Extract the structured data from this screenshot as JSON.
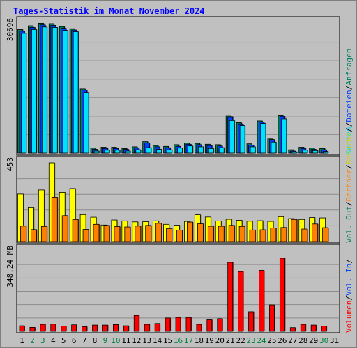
{
  "chart_data": {
    "type": "bar",
    "title": "Tages-Statistik im Monat November 2024",
    "categories": [
      "1",
      "2",
      "3",
      "4",
      "5",
      "6",
      "7",
      "8",
      "9",
      "10",
      "11",
      "12",
      "13",
      "14",
      "15",
      "16",
      "17",
      "18",
      "19",
      "20",
      "21",
      "22",
      "23",
      "24",
      "25",
      "26",
      "27",
      "28",
      "29",
      "30",
      "31"
    ],
    "weekend_days": [
      "2",
      "3",
      "9",
      "10",
      "16",
      "17",
      "23",
      "24",
      "30"
    ],
    "colors": {
      "title": "#0000ff",
      "weekday": "#000000",
      "weekend": "#008040",
      "anfragen": "#008060",
      "dateien": "#0040ff",
      "seiten": "#00e0ff",
      "besuche": "#ffff00",
      "rechner": "#ff8000",
      "volumen": "#ff0000"
    },
    "right_labels": {
      "anfragen": "Anfragen",
      "dateien": "Dateien",
      "seiten": "Seiten",
      "besuche": "Besuche",
      "rechner": "Rechner",
      "vol_out": "Vol. Out",
      "vol_in": "Vol. In",
      "volumen": "Volumen",
      "sep": "/"
    },
    "panels": [
      {
        "id": "hits",
        "max_label": "30696",
        "ylim": [
          0,
          30696
        ],
        "series": [
          {
            "name": "Anfragen",
            "values": [
              29300,
              30200,
              30800,
              30700,
              30000,
              29500,
              15200,
              1200,
              1400,
              1400,
              1100,
              1500,
              2700,
              1800,
              1600,
              2000,
              2400,
              2300,
              2100,
              2000,
              8900,
              7200,
              2200,
              7600,
              3500,
              9000,
              800,
              1400,
              1200,
              1100,
              null
            ]
          },
          {
            "name": "Dateien",
            "values": [
              28900,
              29800,
              30400,
              30300,
              29600,
              29200,
              14900,
              900,
              1100,
              1100,
              900,
              1200,
              2400,
              1500,
              1300,
              1600,
              2100,
              2000,
              1800,
              1700,
              8600,
              6900,
              1900,
              7300,
              3200,
              8700,
              500,
              1100,
              900,
              800,
              null
            ]
          },
          {
            "name": "Seiten",
            "values": [
              28400,
              29300,
              29900,
              29800,
              29100,
              28800,
              14400,
              500,
              700,
              700,
              500,
              800,
              1300,
              900,
              800,
              1200,
              1700,
              1500,
              1100,
              1300,
              7700,
              6500,
              1500,
              7000,
              2600,
              8100,
              300,
              700,
              600,
              400,
              null
            ]
          }
        ]
      },
      {
        "id": "visits",
        "max_label": "453",
        "ylim": [
          0,
          453
        ],
        "series": [
          {
            "name": "Besuche",
            "values": [
              273,
              195,
              297,
              453,
              283,
              305,
              155,
              140,
              95,
              124,
              119,
              113,
              114,
              119,
              99,
              94,
              116,
              154,
              141,
              118,
              128,
              122,
              117,
              120,
              116,
              143,
              132,
              127,
              138,
              136,
              null
            ]
          },
          {
            "name": "Rechner",
            "values": [
              89,
              69,
              87,
              255,
              149,
              127,
              70,
              99,
              93,
              86,
              84,
              89,
              93,
              105,
              75,
              66,
              112,
              102,
              88,
              88,
              93,
              87,
              67,
              68,
              78,
              81,
              127,
              72,
              101,
              80,
              null
            ]
          }
        ]
      },
      {
        "id": "volume",
        "max_label": "348.24 MB",
        "ylim": [
          0,
          348.24
        ],
        "series": [
          {
            "name": "Volumen",
            "values": [
              24,
              17,
              30,
              31,
              23,
              28,
              20,
              27,
              27,
              29,
              24,
              69,
              30,
              34,
              58,
              60,
              60,
              30,
              50,
              55,
              300,
              260,
              85,
              265,
              115,
              318,
              16,
              30,
              27,
              23,
              null
            ]
          }
        ]
      }
    ]
  }
}
